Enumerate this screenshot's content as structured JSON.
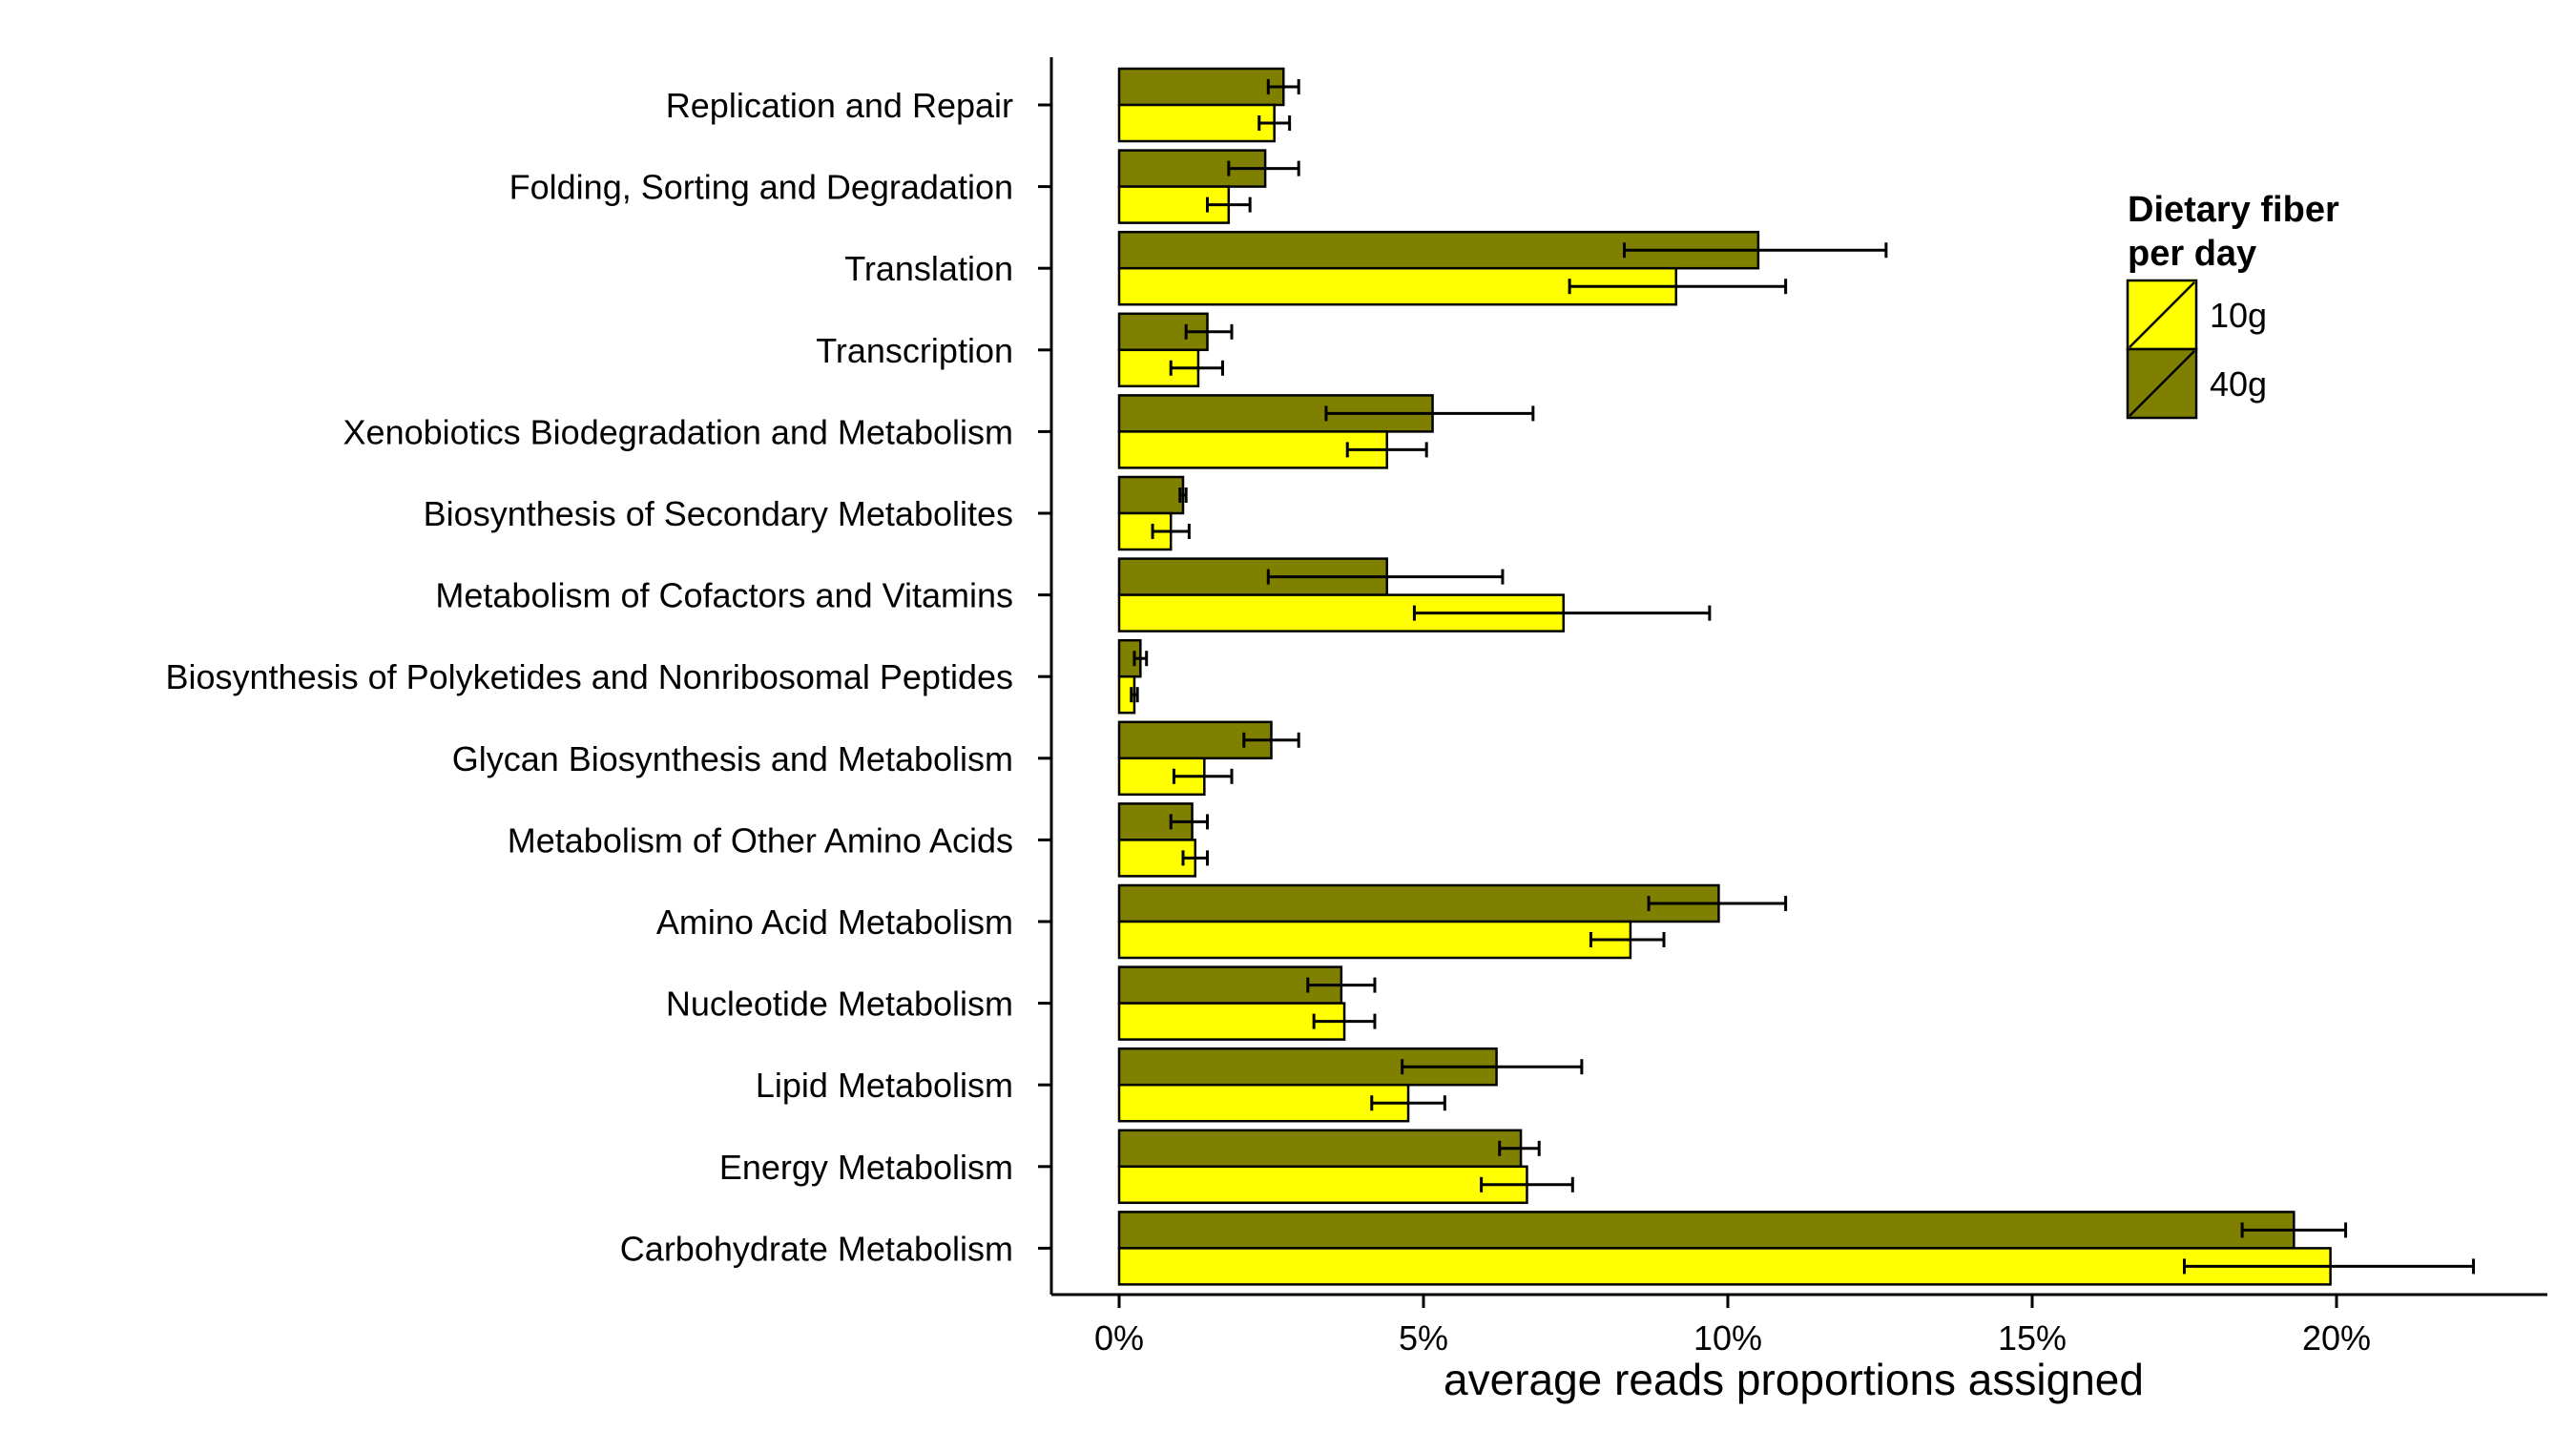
{
  "chart_data": {
    "type": "bar",
    "orientation": "horizontal",
    "title": "",
    "xlabel": "average reads proportions assigned",
    "ylabel": "",
    "xlim": [
      -0.011,
      0.235
    ],
    "x_ticks": [
      0,
      0.05,
      0.1,
      0.15,
      0.2
    ],
    "x_tick_labels": [
      "0%",
      "5%",
      "10%",
      "15%",
      "20%"
    ],
    "grid": false,
    "legend": {
      "title_lines": [
        "Dietary fiber",
        "per day"
      ],
      "position": "right"
    },
    "categories": [
      "Replication and Repair",
      "Folding, Sorting and Degradation",
      "Translation",
      "Transcription",
      "Xenobiotics Biodegradation and Metabolism",
      "Biosynthesis of Secondary Metabolites",
      "Metabolism of Cofactors and Vitamins",
      "Biosynthesis of Polyketides and Nonribosomal Peptides",
      "Glycan Biosynthesis and Metabolism",
      "Metabolism of Other Amino Acids",
      "Amino Acid Metabolism",
      "Nucleotide Metabolism",
      "Lipid Metabolism",
      "Energy Metabolism",
      "Carbohydrate Metabolism"
    ],
    "series": [
      {
        "name": "40g",
        "color": "#808000",
        "values": [
          0.027,
          0.024,
          0.105,
          0.0145,
          0.0515,
          0.0105,
          0.044,
          0.0035,
          0.025,
          0.012,
          0.0985,
          0.0365,
          0.062,
          0.066,
          0.193
        ],
        "err_low": [
          0.0245,
          0.018,
          0.083,
          0.011,
          0.034,
          0.01,
          0.0245,
          0.0025,
          0.0205,
          0.0085,
          0.087,
          0.031,
          0.0465,
          0.0625,
          0.1845
        ],
        "err_high": [
          0.0295,
          0.0295,
          0.126,
          0.0185,
          0.068,
          0.011,
          0.063,
          0.0045,
          0.0295,
          0.0145,
          0.1095,
          0.042,
          0.076,
          0.069,
          0.2015
        ]
      },
      {
        "name": "10g",
        "color": "#ffff00",
        "values": [
          0.0255,
          0.018,
          0.0915,
          0.013,
          0.044,
          0.0085,
          0.073,
          0.0025,
          0.014,
          0.0125,
          0.084,
          0.037,
          0.0475,
          0.067,
          0.199
        ],
        "err_low": [
          0.023,
          0.0145,
          0.074,
          0.0085,
          0.0375,
          0.0055,
          0.0485,
          0.002,
          0.009,
          0.0105,
          0.0775,
          0.032,
          0.0415,
          0.0595,
          0.175
        ],
        "err_high": [
          0.028,
          0.0215,
          0.1095,
          0.017,
          0.0505,
          0.0115,
          0.097,
          0.003,
          0.0185,
          0.0145,
          0.0895,
          0.042,
          0.0535,
          0.0745,
          0.2225
        ]
      }
    ]
  }
}
